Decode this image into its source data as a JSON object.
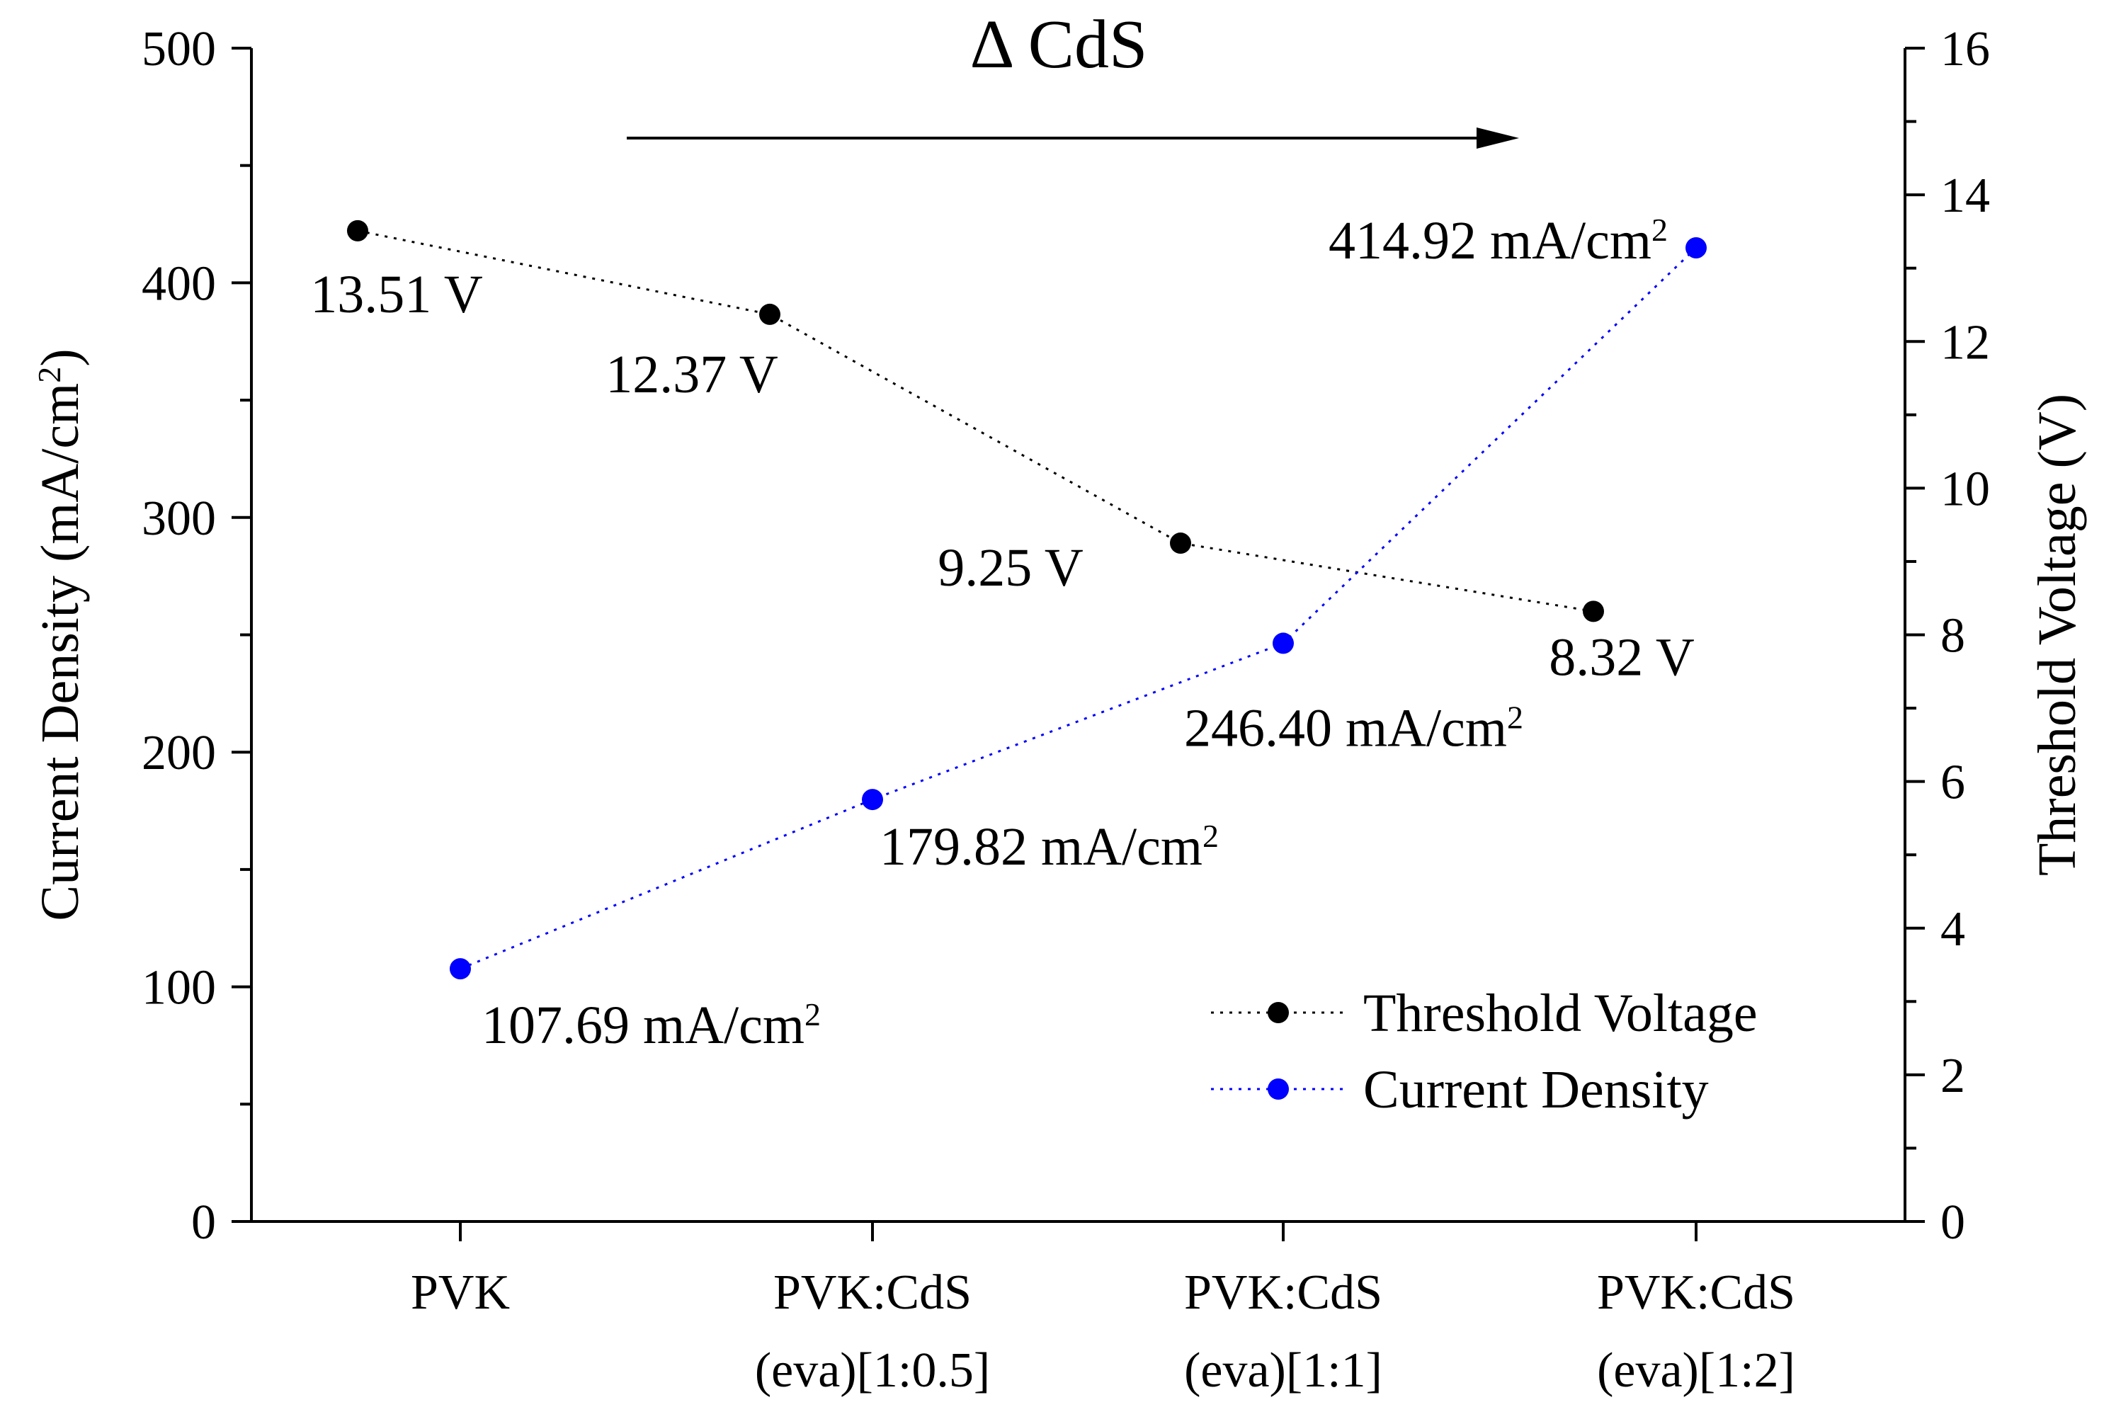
{
  "chart_data": {
    "type": "line",
    "title": "Δ CdS",
    "categories": [
      "PVK",
      "PVK:CdS (eva)[1:0.5]",
      "PVK:CdS (eva)[1:1]",
      "PVK:CdS (eva)[1:2]"
    ],
    "category_lines": [
      [
        "PVK"
      ],
      [
        "PVK:CdS",
        "(eva)[1:0.5]"
      ],
      [
        "PVK:CdS",
        "(eva)[1:1]"
      ],
      [
        "PVK:CdS",
        "(eva)[1:2]"
      ]
    ],
    "left_axis": {
      "label_main": "Current Density (mA/cm",
      "label_sup": "2",
      "label_close": ")",
      "range": [
        0,
        500
      ],
      "ticks": [
        0,
        100,
        200,
        300,
        400,
        500
      ]
    },
    "right_axis": {
      "label": "Threshold Voltage (V)",
      "range": [
        0,
        16
      ],
      "ticks": [
        0,
        2,
        4,
        6,
        8,
        10,
        12,
        14,
        16
      ]
    },
    "series": [
      {
        "name": "Threshold Voltage",
        "axis": "right",
        "color": "#000000",
        "values": [
          13.51,
          12.37,
          9.25,
          8.32
        ],
        "labels": [
          "13.51 V",
          "12.37 V",
          "9.25 V",
          "8.32 V"
        ],
        "label_sups": [
          "",
          "",
          "",
          ""
        ]
      },
      {
        "name": "Current Density",
        "axis": "left",
        "color": "#0000ff",
        "values": [
          107.69,
          179.82,
          246.4,
          414.92
        ],
        "labels": [
          "107.69 mA/cm",
          "179.82 mA/cm",
          "246.40 mA/cm",
          "414.92 mA/cm"
        ],
        "label_sups": [
          "2",
          "2",
          "2",
          "2"
        ]
      }
    ],
    "annotation_arrow": "right",
    "legend_position": "bottom-right"
  }
}
